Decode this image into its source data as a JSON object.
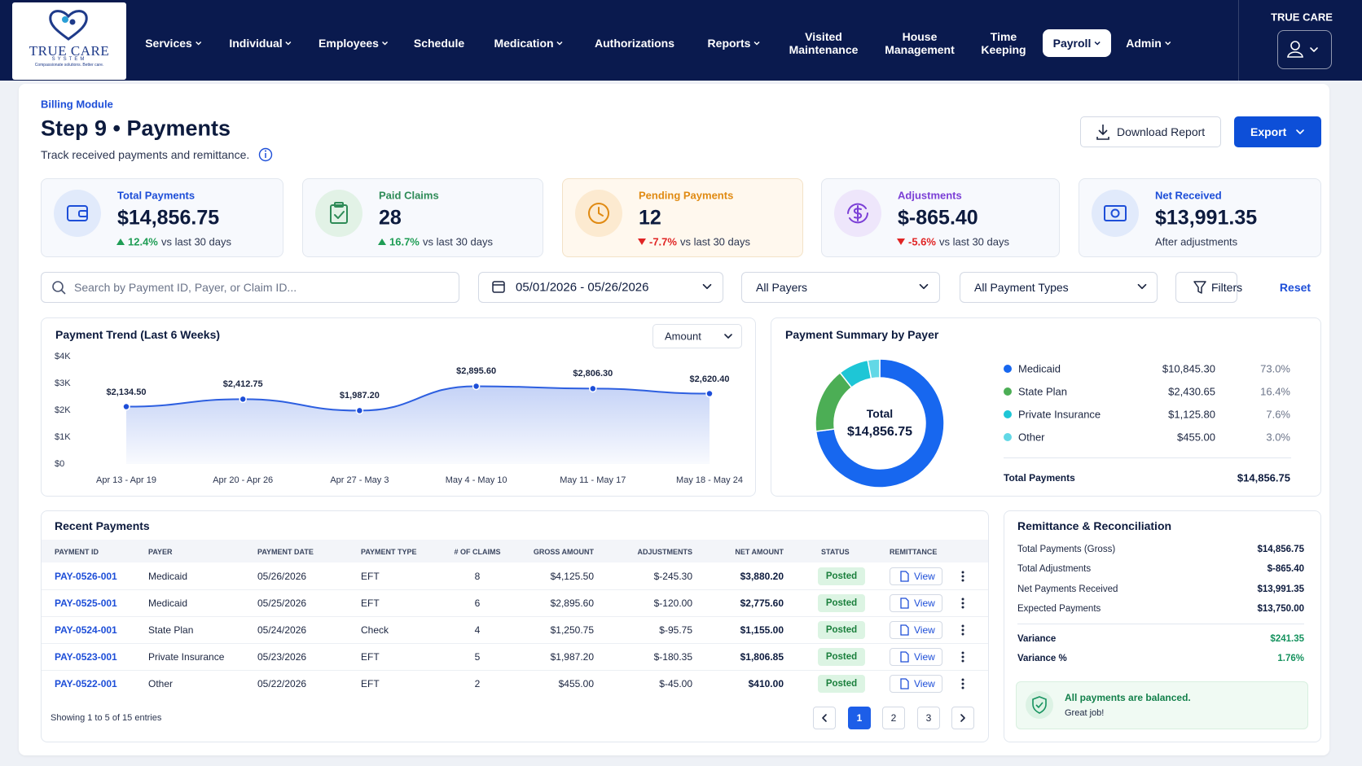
{
  "nav": {
    "logo": {
      "name": "TRUE CARE",
      "sub": "SYSTEM",
      "tagline": "Compassionate solutions. Better care."
    },
    "items": [
      {
        "label": "Services",
        "menu": true
      },
      {
        "label": "Individual",
        "menu": true
      },
      {
        "label": "Employees",
        "menu": true
      },
      {
        "label": "Schedule",
        "menu": false
      },
      {
        "label": "Medication",
        "menu": true
      },
      {
        "label": "Authorizations",
        "menu": false
      },
      {
        "label": "Reports",
        "menu": true
      },
      {
        "label": "Visited Maintenance",
        "menu": false
      },
      {
        "label": "House Management",
        "menu": false
      },
      {
        "label": "Time Keeping",
        "menu": false
      },
      {
        "label": "Payroll",
        "menu": true,
        "active": true
      },
      {
        "label": "Admin",
        "menu": true
      }
    ],
    "account": "TRUE CARE"
  },
  "header": {
    "breadcrumb": "Billing Module",
    "title": "Step 9 • Payments",
    "subtitle": "Track received payments and remittance.",
    "actions": [
      "Download Report",
      "Export"
    ]
  },
  "kpis": [
    {
      "label": "Total Payments",
      "value": "$14,856.75",
      "delta": "12.4%",
      "trend": "up",
      "note": "vs last 30 days"
    },
    {
      "label": "Paid Claims",
      "value": "28",
      "delta": "16.7%",
      "trend": "up",
      "note": "vs last 30 days"
    },
    {
      "label": "Pending Payments",
      "value": "12",
      "delta": "-7.7%",
      "trend": "down",
      "note": "vs last 30 days"
    },
    {
      "label": "Adjustments",
      "value": "$-865.40",
      "delta": "-5.6%",
      "trend": "down",
      "note": "vs last 30 days"
    },
    {
      "label": "Net Received",
      "value": "$13,991.35",
      "note": "After adjustments"
    }
  ],
  "filters": {
    "search_placeholder": "Search by Payment ID, Payer, or Claim ID...",
    "date_range": "05/01/2026 - 05/26/2026",
    "payer": "All Payers",
    "payment_type": "All Payment Types",
    "filters_button": "Filters",
    "reset": "Reset"
  },
  "chart_data": [
    {
      "type": "line",
      "title": "Payment Trend (Last 6 Weeks)",
      "control": "Amount",
      "categories": [
        "Apr 13 - Apr 19",
        "Apr 20 - Apr 26",
        "Apr 27 - May 3",
        "May 4 - May 10",
        "May 11 - May 17",
        "May 18 - May 24"
      ],
      "values": [
        2134.5,
        2412.75,
        1987.2,
        2895.6,
        2806.3,
        2620.4
      ],
      "value_labels": [
        "$2,134.50",
        "$2,412.75",
        "$1,987.20",
        "$2,895.60",
        "$2,806.30",
        "$2,620.40"
      ],
      "ylim": [
        0,
        4000
      ],
      "yticks": [
        {
          "value": 0,
          "label": "$0"
        },
        {
          "value": 1000,
          "label": "$1K"
        },
        {
          "value": 2000,
          "label": "$2K"
        },
        {
          "value": 3000,
          "label": "$3K"
        },
        {
          "value": 4000,
          "label": "$4K"
        }
      ],
      "color": "#2d5fe0",
      "grid": false
    },
    {
      "type": "donut",
      "title": "Payment Summary by Payer",
      "categories": [
        "Medicaid",
        "State Plan",
        "Private Insurance",
        "Other"
      ],
      "values": [
        73.0,
        16.4,
        7.6,
        3.0
      ],
      "value_labels": [
        "73.0%",
        "16.4%",
        "7.6%",
        "3.0%"
      ],
      "amount_labels": [
        "$10,845.30",
        "$2,430.65",
        "$1,125.80",
        "$455.00"
      ],
      "colors": [
        "#1767ef",
        "#4cae55",
        "#1ec6d6",
        "#62d8e6"
      ],
      "center_label": "Total",
      "center_value": "$14,856.75",
      "total_label": "Total Payments",
      "total_value": "$14,856.75"
    }
  ],
  "recent_payments": {
    "title": "Recent Payments",
    "columns": [
      "PAYMENT ID",
      "PAYER",
      "PAYMENT DATE",
      "PAYMENT TYPE",
      "# OF CLAIMS",
      "GROSS AMOUNT",
      "ADJUSTMENTS",
      "NET AMOUNT",
      "STATUS",
      "REMITTANCE"
    ],
    "rows": [
      [
        "PAY-0526-001",
        "Medicaid",
        "05/26/2026",
        "EFT",
        8,
        "$4,125.50",
        "$-245.30",
        "$3,880.20",
        "Posted"
      ],
      [
        "PAY-0525-001",
        "Medicaid",
        "05/25/2026",
        "EFT",
        6,
        "$2,895.60",
        "$-120.00",
        "$2,775.60",
        "Posted"
      ],
      [
        "PAY-0524-001",
        "State Plan",
        "05/24/2026",
        "Check",
        4,
        "$1,250.75",
        "$-95.75",
        "$1,155.00",
        "Posted"
      ],
      [
        "PAY-0523-001",
        "Private Insurance",
        "05/23/2026",
        "EFT",
        5,
        "$1,987.20",
        "$-180.35",
        "$1,806.85",
        "Posted"
      ],
      [
        "PAY-0522-001",
        "Other",
        "05/22/2026",
        "EFT",
        2,
        "$455.00",
        "$-45.00",
        "$410.00",
        "Posted"
      ]
    ],
    "action": "View",
    "footer": "Showing 1 to 5 of 15 entries",
    "pages": [
      1,
      2,
      3
    ]
  },
  "reconciliation": {
    "title": "Remittance & Reconciliation",
    "rows": [
      [
        "Total Payments (Gross)",
        "$14,856.75"
      ],
      [
        "Total Adjustments",
        "$-865.40"
      ],
      [
        "Net Payments Received",
        "$13,991.35"
      ],
      [
        "Expected Payments",
        "$13,750.00"
      ]
    ],
    "variance": [
      [
        "Variance",
        "$241.35"
      ],
      [
        "Variance %",
        "1.76%"
      ]
    ],
    "status": {
      "title": "All payments are balanced.",
      "note": "Great job!"
    }
  }
}
